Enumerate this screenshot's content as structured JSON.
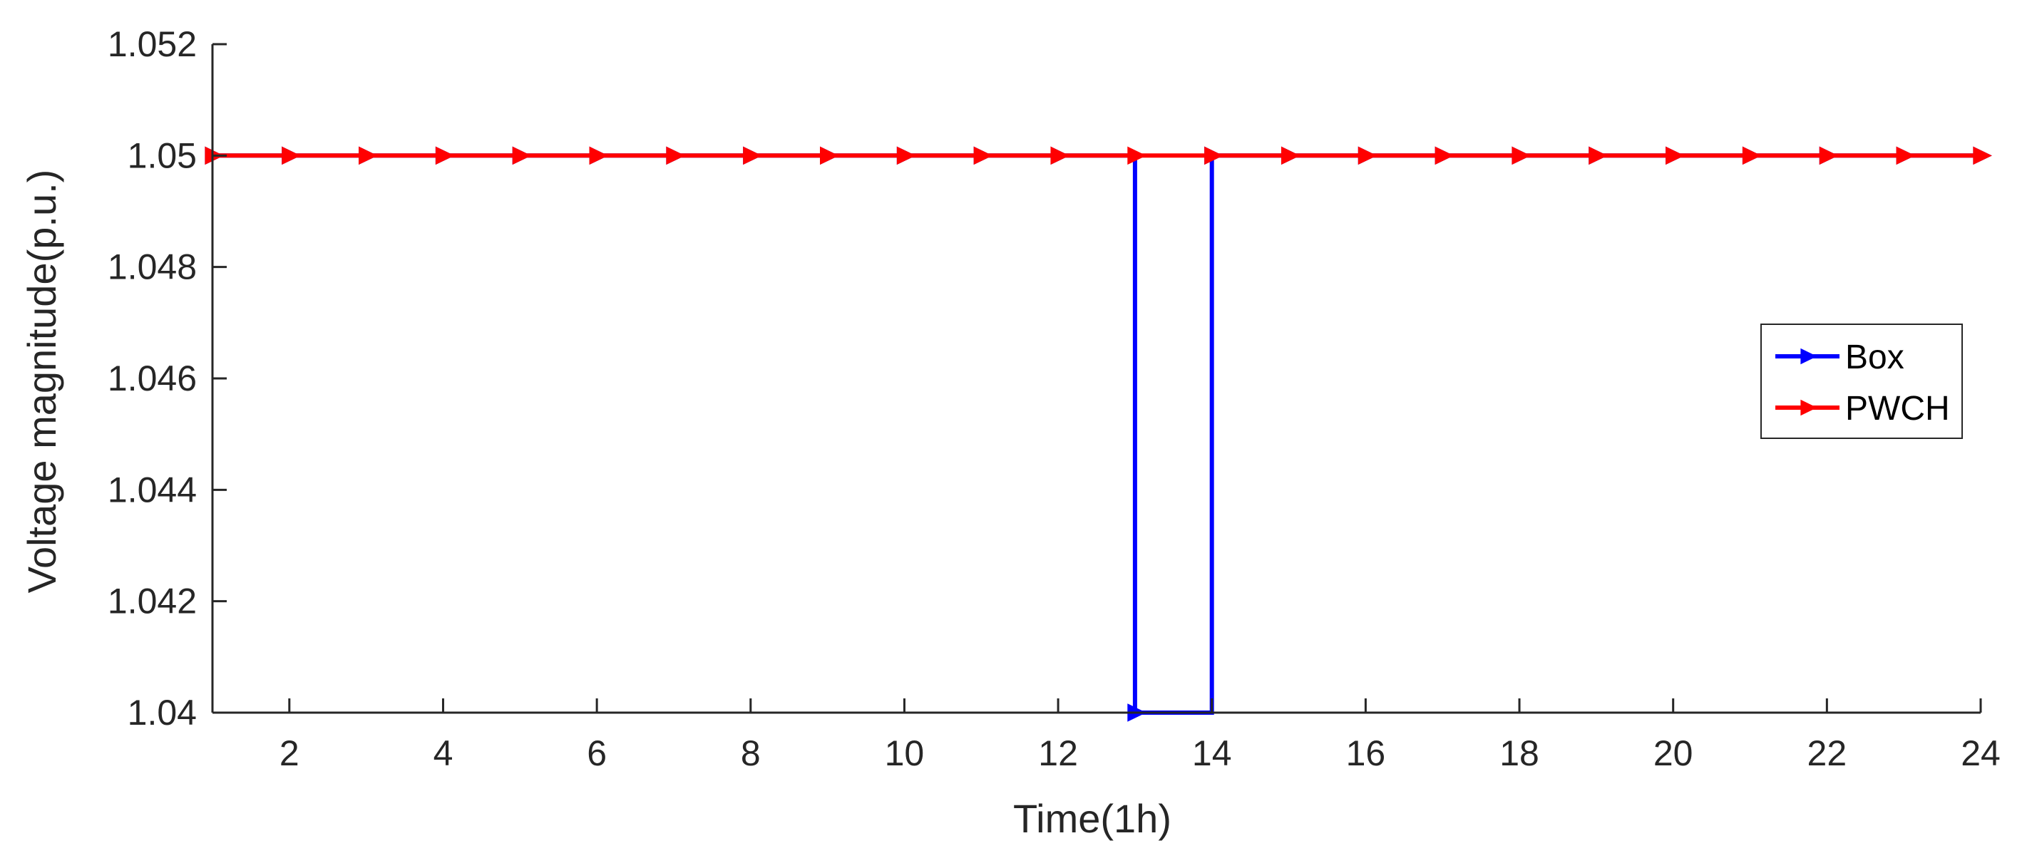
{
  "chart_data": {
    "type": "line",
    "title": "",
    "xlabel": "Time(1h)",
    "ylabel": "Voltage magnitude(p.u.)",
    "xlim": [
      1,
      24
    ],
    "ylim": [
      1.04,
      1.052
    ],
    "xticks": [
      2,
      4,
      6,
      8,
      10,
      12,
      14,
      16,
      18,
      20,
      22,
      24
    ],
    "yticks": [
      1.04,
      1.042,
      1.044,
      1.046,
      1.048,
      1.05,
      1.052
    ],
    "ytick_labels": [
      "1.04",
      "1.042",
      "1.044",
      "1.046",
      "1.048",
      "1.05",
      "1.052"
    ],
    "grid": false,
    "legend_position": "right",
    "x": [
      1,
      2,
      3,
      4,
      5,
      6,
      7,
      8,
      9,
      10,
      11,
      12,
      13,
      14,
      15,
      16,
      17,
      18,
      19,
      20,
      21,
      22,
      23,
      24
    ],
    "series": [
      {
        "name": "Box",
        "color": "#0000FF",
        "marker": "right-triangle",
        "line_style": "stairs",
        "values": [
          1.05,
          1.05,
          1.05,
          1.05,
          1.05,
          1.05,
          1.05,
          1.05,
          1.05,
          1.05,
          1.05,
          1.05,
          1.04,
          1.05,
          1.05,
          1.05,
          1.05,
          1.05,
          1.05,
          1.05,
          1.05,
          1.05,
          1.05,
          1.05
        ]
      },
      {
        "name": "PWCH",
        "color": "#FF0000",
        "marker": "right-triangle",
        "line_style": "stairs",
        "values": [
          1.05,
          1.05,
          1.05,
          1.05,
          1.05,
          1.05,
          1.05,
          1.05,
          1.05,
          1.05,
          1.05,
          1.05,
          1.05,
          1.05,
          1.05,
          1.05,
          1.05,
          1.05,
          1.05,
          1.05,
          1.05,
          1.05,
          1.05,
          1.05
        ]
      }
    ]
  }
}
